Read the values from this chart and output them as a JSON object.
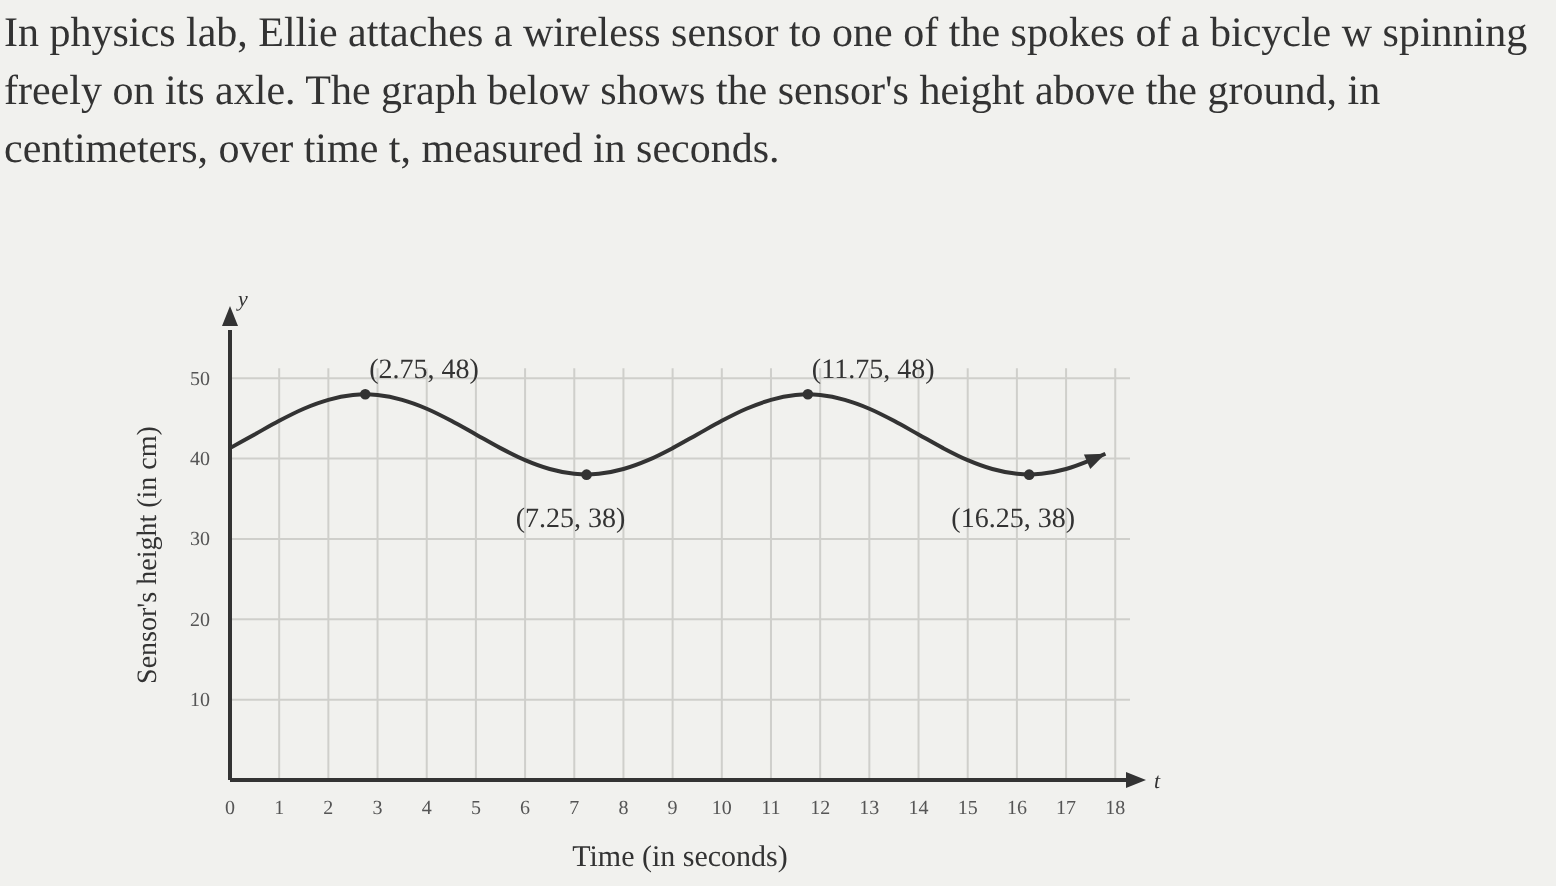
{
  "chart_data": {
    "type": "line",
    "title": "In physics lab, Ellie attaches a wireless sensor to one of the spokes of a bicycle w spinning freely on its axle. The graph below shows the sensor's height above the ground, in centimeters, over time t, measured in seconds.",
    "xlabel": "Time (in seconds)",
    "ylabel": "Sensor's height (in cm)",
    "xlim": [
      0,
      18.3
    ],
    "ylim": [
      0,
      56
    ],
    "xticks": [
      0,
      1,
      2,
      3,
      4,
      5,
      6,
      7,
      8,
      9,
      10,
      11,
      12,
      13,
      14,
      15,
      16,
      17,
      18
    ],
    "yticks": [
      10,
      20,
      30,
      40,
      50
    ],
    "grid": true,
    "series": [
      {
        "color": "#333333",
        "x": [
          0,
          0.5,
          1,
          1.5,
          2,
          2.5,
          2.75,
          3,
          3.5,
          4,
          4.5,
          5,
          5.5,
          6,
          6.5,
          7,
          7.25,
          7.5,
          8,
          8.5,
          9,
          9.5,
          10,
          10.5,
          11,
          11.5,
          11.75,
          12,
          12.5,
          13,
          13.5,
          14,
          14.5,
          15,
          15.5,
          16,
          16.25,
          16.5,
          17,
          17.5,
          17.8
        ],
        "values": [
          41.3,
          43.0,
          44.7,
          46.2,
          47.3,
          47.9,
          48,
          47.9,
          47.3,
          46.2,
          44.7,
          43.0,
          41.3,
          39.8,
          38.7,
          38.1,
          38,
          38.1,
          38.7,
          39.8,
          41.3,
          43.0,
          44.7,
          46.2,
          47.3,
          47.9,
          48,
          47.9,
          47.3,
          46.2,
          44.7,
          43.0,
          41.3,
          39.8,
          38.7,
          38.1,
          38,
          38.1,
          38.7,
          39.8,
          40.6
        ]
      },
      {
        "type": "scatter",
        "color": "#333333",
        "marker": "circle",
        "x": [
          2.75,
          7.25,
          11.75,
          16.25
        ],
        "values": [
          48,
          38,
          48,
          38
        ]
      }
    ],
    "annotations": [
      {
        "text": "(2.75, 48)",
        "x": 2.75,
        "y": 48
      },
      {
        "text": "(7.25, 38)",
        "x": 7.25,
        "y": 38
      },
      {
        "text": "(11.75, 48)",
        "x": 11.75,
        "y": 48
      },
      {
        "text": "(16.25, 38)",
        "x": 16.25,
        "y": 38
      },
      "y",
      "t"
    ]
  }
}
